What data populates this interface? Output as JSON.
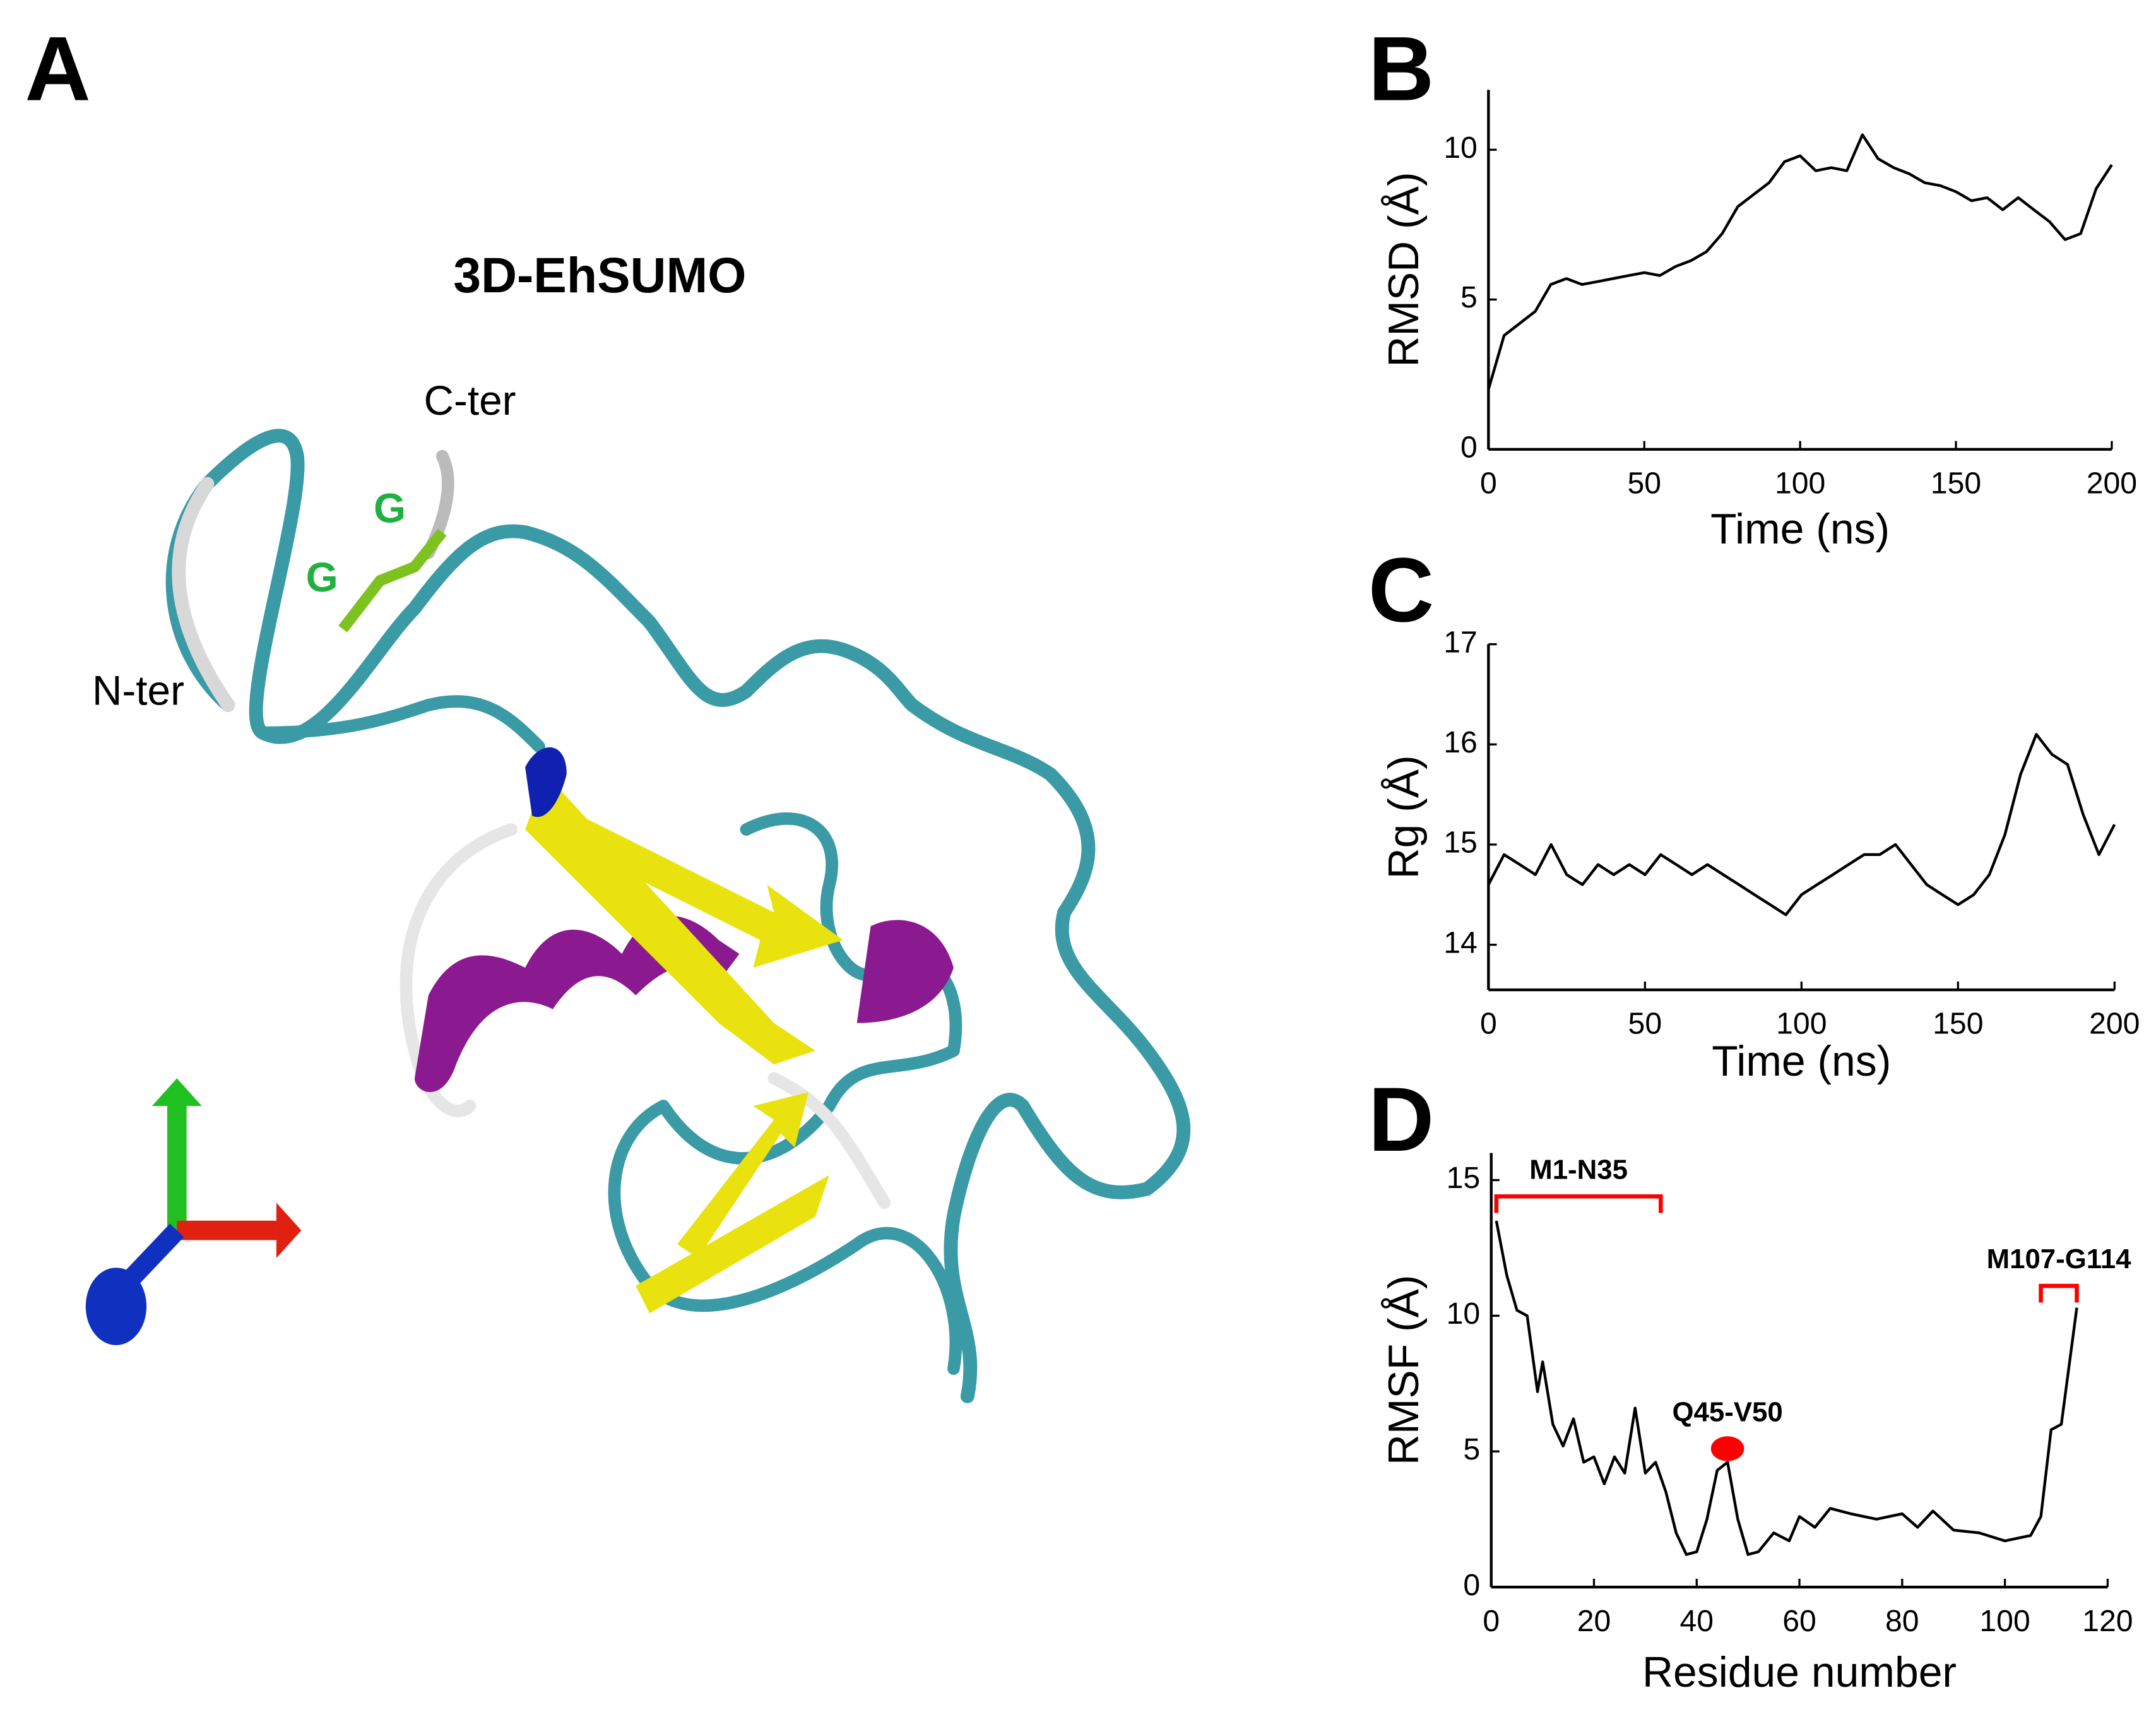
{
  "panel_a": {
    "label": "A",
    "title": "3D-EhSUMO",
    "termini": [
      "C-ter",
      "N-ter"
    ],
    "glycines": [
      "G",
      "G"
    ]
  },
  "chart_data": [
    {
      "type": "line",
      "label": "B",
      "x_label": "Time (ns)",
      "y_label": "RMSD (Å)",
      "x": [
        0,
        5,
        10,
        15,
        20,
        25,
        30,
        35,
        40,
        45,
        50,
        55,
        60,
        65,
        70,
        75,
        80,
        85,
        90,
        95,
        100,
        105,
        110,
        115,
        120,
        125,
        130,
        135,
        140,
        145,
        150,
        155,
        160,
        165,
        170,
        175,
        180,
        185,
        190,
        195,
        200
      ],
      "series": [
        {
          "color": "#000000",
          "values": [
            2.0,
            3.8,
            4.2,
            4.6,
            5.5,
            5.7,
            5.5,
            5.6,
            5.7,
            5.8,
            5.9,
            5.8,
            6.1,
            6.3,
            6.6,
            7.2,
            8.1,
            8.5,
            8.9,
            9.6,
            9.8,
            9.3,
            9.4,
            9.3,
            10.5,
            9.7,
            9.4,
            9.2,
            8.9,
            8.8,
            8.6,
            8.3,
            8.4,
            8.0,
            8.4,
            8.0,
            7.6,
            7.0,
            7.2,
            8.7,
            9.5
          ]
        }
      ],
      "xlim": [
        0,
        200
      ],
      "xticks": [
        0,
        50,
        100,
        150,
        200
      ],
      "ylim": [
        0,
        12
      ],
      "yticks": [
        0,
        5,
        10
      ]
    },
    {
      "type": "line",
      "label": "C",
      "x_label": "Time (ns)",
      "y_label": "Rg (Å)",
      "x": [
        0,
        5,
        10,
        15,
        20,
        25,
        30,
        35,
        40,
        45,
        50,
        55,
        60,
        65,
        70,
        75,
        80,
        85,
        90,
        95,
        100,
        105,
        110,
        115,
        120,
        125,
        130,
        135,
        140,
        145,
        150,
        155,
        160,
        165,
        170,
        175,
        180,
        185,
        190,
        195,
        200
      ],
      "series": [
        {
          "color": "#000000",
          "values": [
            14.6,
            14.9,
            14.8,
            14.7,
            15.0,
            14.7,
            14.6,
            14.8,
            14.7,
            14.8,
            14.7,
            14.9,
            14.8,
            14.7,
            14.8,
            14.7,
            14.6,
            14.5,
            14.4,
            14.3,
            14.5,
            14.6,
            14.7,
            14.8,
            14.9,
            14.9,
            15.0,
            14.8,
            14.6,
            14.5,
            14.4,
            14.5,
            14.7,
            15.1,
            15.7,
            16.1,
            15.9,
            15.8,
            15.3,
            14.9,
            15.2
          ]
        }
      ],
      "xlim": [
        0,
        200
      ],
      "xticks": [
        0,
        50,
        100,
        150,
        200
      ],
      "ylim": [
        13.55,
        17
      ],
      "yticks": [
        14,
        15,
        16,
        17
      ]
    },
    {
      "type": "line",
      "label": "D",
      "x_label": "Residue number",
      "y_label": "RMSF (Å)",
      "x": [
        1,
        3,
        5,
        7,
        9,
        10,
        12,
        14,
        16,
        18,
        20,
        22,
        24,
        26,
        28,
        30,
        32,
        34,
        36,
        38,
        40,
        42,
        44,
        46,
        48,
        50,
        52,
        55,
        58,
        60,
        63,
        66,
        70,
        75,
        80,
        83,
        86,
        90,
        95,
        100,
        105,
        107,
        109,
        111,
        114
      ],
      "series": [
        {
          "color": "#000000",
          "values": [
            13.5,
            11.5,
            10.2,
            10.0,
            7.2,
            8.3,
            6.0,
            5.2,
            6.2,
            4.6,
            4.8,
            3.8,
            4.8,
            4.2,
            6.6,
            4.2,
            4.6,
            3.5,
            2.0,
            1.2,
            1.3,
            2.5,
            4.3,
            4.6,
            2.5,
            1.2,
            1.3,
            2.0,
            1.7,
            2.6,
            2.2,
            2.9,
            2.7,
            2.5,
            2.7,
            2.2,
            2.8,
            2.1,
            2.0,
            1.7,
            1.9,
            2.6,
            5.8,
            6.0,
            10.3
          ]
        }
      ],
      "xlim": [
        0,
        120
      ],
      "xticks": [
        0,
        20,
        40,
        60,
        80,
        100,
        120
      ],
      "ylim": [
        0,
        16
      ],
      "yticks": [
        0,
        5,
        10,
        15
      ],
      "annotation_color": "#ff0000",
      "annotations": [
        {
          "text": "M1-N35",
          "x": [
            1,
            33
          ],
          "y": 14.4
        },
        {
          "text": "Q45-V50",
          "x": 46,
          "y": 5.1
        },
        {
          "text": "M107-G114",
          "x": [
            107,
            114
          ],
          "y": 11.1
        }
      ]
    }
  ]
}
